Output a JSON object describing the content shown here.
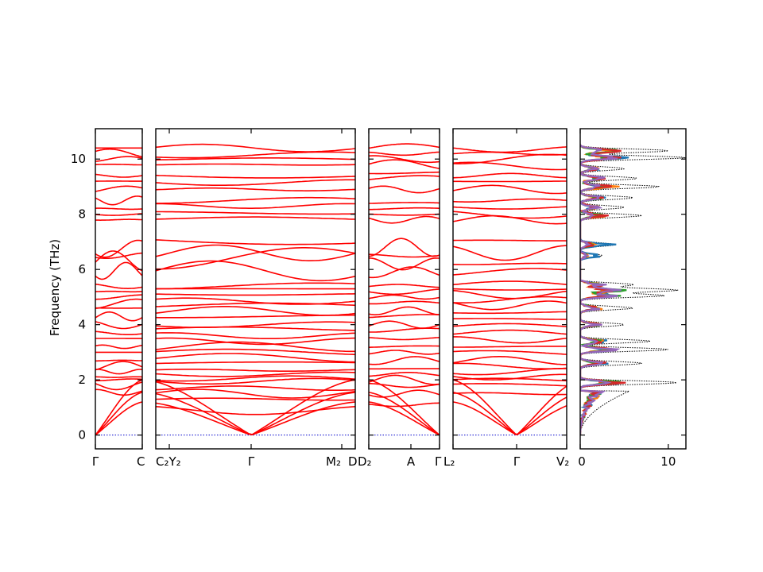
{
  "chart_data": {
    "type": "line",
    "ylabel": "Frequency (THz)",
    "ylim": [
      -0.5,
      11.1
    ],
    "yticks": [
      0,
      2,
      4,
      6,
      8,
      10
    ],
    "colors": {
      "bands": "#ff0000",
      "zero_line": "#0000cc",
      "dos_total": "#000000",
      "dos_projected": [
        "#1f77b4",
        "#ff7f0e",
        "#2ca02c",
        "#d62728",
        "#9467bd"
      ]
    },
    "segments": [
      {
        "labels": [
          "Γ",
          "C"
        ],
        "acoustic_at": "start",
        "bands": [
          1.55,
          1.8,
          2.0,
          2.1,
          2.3,
          2.5,
          2.7,
          3.0,
          3.2,
          3.5,
          3.7,
          4.0,
          4.3,
          4.6,
          4.75,
          5.0,
          5.2,
          5.4,
          5.95,
          6.3,
          6.5,
          6.75,
          7.8,
          8.0,
          8.2,
          8.5,
          8.9,
          9.2,
          9.4,
          9.8,
          10.0,
          10.2,
          10.4
        ]
      },
      {
        "labels": [
          "C₂Y₂",
          "Γ",
          "M₂",
          "D"
        ],
        "acoustic_at": "middle",
        "bands": [
          0.9,
          1.3,
          1.5,
          1.7,
          1.95,
          2.05,
          2.2,
          2.35,
          2.6,
          2.8,
          3.0,
          3.2,
          3.4,
          3.6,
          3.85,
          4.0,
          4.3,
          4.5,
          4.7,
          4.85,
          5.1,
          5.3,
          5.4,
          5.95,
          6.4,
          6.6,
          7.05,
          7.85,
          8.05,
          8.3,
          8.5,
          8.9,
          9.15,
          9.4,
          9.8,
          10.0,
          10.15,
          10.4
        ]
      },
      {
        "labels": [
          "D₂",
          "A",
          "Γ"
        ],
        "acoustic_at": "end",
        "bands": [
          1.1,
          1.5,
          1.8,
          2.0,
          2.2,
          2.4,
          2.7,
          3.0,
          3.2,
          3.5,
          3.8,
          4.0,
          4.3,
          4.5,
          4.8,
          5.0,
          5.2,
          5.4,
          5.9,
          6.2,
          6.5,
          6.8,
          7.8,
          8.0,
          8.2,
          8.4,
          8.9,
          9.3,
          9.5,
          9.8,
          10.0,
          10.2,
          10.4
        ]
      },
      {
        "labels": [
          "L₂",
          "Γ",
          "V₂"
        ],
        "acoustic_at": "middle",
        "bands": [
          1.5,
          1.8,
          2.0,
          2.1,
          2.3,
          2.5,
          2.7,
          2.95,
          3.2,
          3.45,
          3.7,
          3.95,
          4.2,
          4.45,
          4.7,
          4.9,
          5.1,
          5.3,
          5.45,
          5.9,
          6.2,
          6.6,
          7.05,
          7.8,
          8.0,
          8.25,
          8.5,
          8.9,
          9.2,
          9.4,
          9.75,
          10.0,
          10.2,
          10.35
        ]
      }
    ],
    "dos": {
      "xlim": [
        0,
        12
      ],
      "xticks": [
        0,
        10
      ],
      "peaks": [
        [
          1.9,
          11
        ],
        [
          2.6,
          7
        ],
        [
          3.1,
          10
        ],
        [
          3.4,
          8
        ],
        [
          4.0,
          5
        ],
        [
          4.6,
          6
        ],
        [
          5.05,
          9.5
        ],
        [
          5.25,
          11
        ],
        [
          5.45,
          6
        ],
        [
          6.5,
          2.5
        ],
        [
          6.9,
          4
        ],
        [
          7.95,
          7
        ],
        [
          8.25,
          5
        ],
        [
          8.6,
          6
        ],
        [
          9.0,
          9
        ],
        [
          9.3,
          6.5
        ],
        [
          9.65,
          5
        ],
        [
          10.05,
          12
        ],
        [
          10.3,
          10
        ]
      ]
    }
  }
}
